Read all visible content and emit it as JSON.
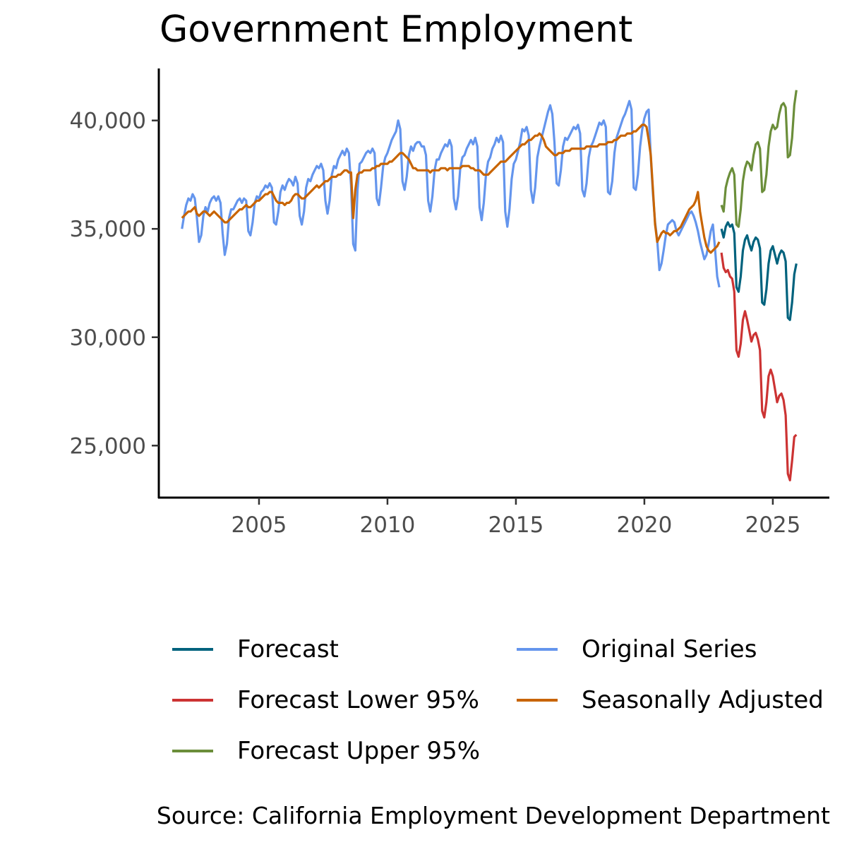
{
  "chart_data": {
    "type": "line",
    "title": "Government Employment",
    "caption": "Source: California Employment Development Department",
    "xlabel": "",
    "ylabel": "",
    "xlim": [
      2001.1,
      2027.2
    ],
    "ylim": [
      22600,
      42400
    ],
    "x_ticks": [
      2005,
      2010,
      2015,
      2020,
      2025
    ],
    "x_tick_labels": [
      "2005",
      "2010",
      "2015",
      "2020",
      "2025"
    ],
    "y_ticks": [
      25000,
      30000,
      35000,
      40000
    ],
    "y_tick_labels": [
      "25,000",
      "30,000",
      "35,000",
      "40,000"
    ],
    "grid": false,
    "legend_position": "bottom",
    "colors": {
      "Forecast": "#00627d",
      "Forecast Lower 95%": "#cc3333",
      "Forecast Upper 95%": "#6b8e3a",
      "Original Series": "#6495ed",
      "Seasonally Adjusted": "#c86400"
    },
    "legend": [
      {
        "name": "Forecast",
        "color": "#00627d"
      },
      {
        "name": "Forecast Lower 95%",
        "color": "#cc3333"
      },
      {
        "name": "Forecast Upper 95%",
        "color": "#6b8e3a"
      },
      {
        "name": "Original Series",
        "color": "#6495ed"
      },
      {
        "name": "Seasonally Adjusted",
        "color": "#c86400"
      }
    ],
    "series": [
      {
        "name": "Original Series",
        "start": "2002-01",
        "frequency": "monthly",
        "annual": [
          {
            "year": 2002,
            "values": [
              35000,
              35600,
              36100,
              36400,
              36300,
              36600,
              36400,
              35500,
              34400,
              34700,
              35600,
              36000
            ]
          },
          {
            "year": 2003,
            "values": [
              35800,
              36200,
              36400,
              36500,
              36300,
              36500,
              36200,
              34800,
              33800,
              34300,
              35500,
              35900
            ]
          },
          {
            "year": 2004,
            "values": [
              35900,
              36100,
              36300,
              36400,
              36200,
              36400,
              36300,
              34900,
              34700,
              35300,
              36200,
              36500
            ]
          },
          {
            "year": 2005,
            "values": [
              36400,
              36700,
              36800,
              37000,
              36900,
              37100,
              36900,
              35300,
              35200,
              35800,
              36700,
              37000
            ]
          },
          {
            "year": 2006,
            "values": [
              36800,
              37100,
              37300,
              37200,
              37000,
              37400,
              37100,
              35600,
              35200,
              35800,
              36900,
              37300
            ]
          },
          {
            "year": 2007,
            "values": [
              37200,
              37500,
              37700,
              37900,
              37800,
              38000,
              37700,
              36300,
              35700,
              36300,
              37500,
              37900
            ]
          },
          {
            "year": 2008,
            "values": [
              37800,
              38200,
              38400,
              38600,
              38400,
              38700,
              38500,
              37000,
              34300,
              34000,
              36800,
              38000
            ]
          },
          {
            "year": 2009,
            "values": [
              38100,
              38300,
              38500,
              38600,
              38500,
              38700,
              38500,
              36400,
              36100,
              36900,
              37900,
              38300
            ]
          },
          {
            "year": 2010,
            "values": [
              38500,
              38800,
              39100,
              39300,
              39500,
              40000,
              39600,
              37200,
              36800,
              37400,
              38400,
              38800
            ]
          },
          {
            "year": 2011,
            "values": [
              38600,
              38900,
              39000,
              39000,
              38800,
              38800,
              38400,
              36300,
              35800,
              36500,
              37700,
              38200
            ]
          },
          {
            "year": 2012,
            "values": [
              38200,
              38500,
              38700,
              38900,
              38800,
              39100,
              38800,
              36400,
              35900,
              36500,
              37800,
              38300
            ]
          },
          {
            "year": 2013,
            "values": [
              38400,
              38700,
              38900,
              39100,
              38900,
              39200,
              38800,
              36000,
              35400,
              36200,
              37500,
              38100
            ]
          },
          {
            "year": 2014,
            "values": [
              38300,
              38700,
              38900,
              39200,
              39000,
              39300,
              39000,
              35800,
              35100,
              35900,
              37300,
              38000
            ]
          },
          {
            "year": 2015,
            "values": [
              38200,
              38600,
              39000,
              39600,
              39500,
              39700,
              39300,
              36800,
              36200,
              36900,
              38300,
              38800
            ]
          },
          {
            "year": 2016,
            "values": [
              39200,
              39600,
              40000,
              40400,
              40700,
              40300,
              39000,
              37100,
              37000,
              37700,
              38800,
              39200
            ]
          },
          {
            "year": 2017,
            "values": [
              39100,
              39300,
              39500,
              39700,
              39600,
              39800,
              39400,
              36800,
              36500,
              37100,
              38300,
              38800
            ]
          },
          {
            "year": 2018,
            "values": [
              39000,
              39300,
              39600,
              39900,
              39800,
              40000,
              39700,
              36700,
              36600,
              37200,
              38500,
              39200
            ]
          },
          {
            "year": 2019,
            "values": [
              39500,
              39800,
              40100,
              40300,
              40600,
              40900,
              40500,
              36900,
              36800,
              37500,
              38800,
              39600
            ]
          },
          {
            "year": 2020,
            "values": [
              40100,
              40400,
              40500,
              38300,
              36600,
              35300,
              34500,
              33100,
              33400,
              34000,
              34700,
              35200
            ]
          },
          {
            "year": 2021,
            "values": [
              35300,
              35400,
              35300,
              34900,
              34700,
              34900,
              35100,
              35300,
              35500,
              35700,
              35800,
              35600
            ]
          },
          {
            "year": 2022,
            "values": [
              35300,
              34900,
              34400,
              34000,
              33600,
              33800,
              34300,
              34900,
              35200,
              34100,
              32800,
              32300
            ]
          }
        ]
      },
      {
        "name": "Seasonally Adjusted",
        "start": "2002-01",
        "frequency": "monthly",
        "annual": [
          {
            "year": 2002,
            "values": [
              35500,
              35600,
              35700,
              35800,
              35800,
              35900,
              36000,
              35700,
              35600,
              35700,
              35800,
              35800
            ]
          },
          {
            "year": 2003,
            "values": [
              35700,
              35600,
              35700,
              35800,
              35700,
              35600,
              35500,
              35400,
              35300,
              35300,
              35400,
              35500
            ]
          },
          {
            "year": 2004,
            "values": [
              35600,
              35700,
              35800,
              35900,
              35900,
              36000,
              36100,
              36000,
              36000,
              36100,
              36200,
              36300
            ]
          },
          {
            "year": 2005,
            "values": [
              36300,
              36400,
              36500,
              36600,
              36600,
              36700,
              36700,
              36500,
              36300,
              36200,
              36200,
              36200
            ]
          },
          {
            "year": 2006,
            "values": [
              36100,
              36200,
              36200,
              36300,
              36500,
              36600,
              36600,
              36500,
              36400,
              36400,
              36500,
              36600
            ]
          },
          {
            "year": 2007,
            "values": [
              36700,
              36800,
              36900,
              37000,
              36900,
              37000,
              37100,
              37200,
              37200,
              37300,
              37400,
              37400
            ]
          },
          {
            "year": 2008,
            "values": [
              37400,
              37500,
              37500,
              37600,
              37700,
              37700,
              37600,
              37600,
              35500,
              36800,
              37500,
              37600
            ]
          },
          {
            "year": 2009,
            "values": [
              37600,
              37700,
              37700,
              37700,
              37700,
              37800,
              37800,
              37900,
              37900,
              38000,
              38000,
              38000
            ]
          },
          {
            "year": 2010,
            "values": [
              38000,
              38100,
              38100,
              38200,
              38300,
              38400,
              38500,
              38500,
              38400,
              38300,
              38200,
              38000
            ]
          },
          {
            "year": 2011,
            "values": [
              37800,
              37800,
              37700,
              37700,
              37700,
              37700,
              37700,
              37700,
              37600,
              37700,
              37700,
              37700
            ]
          },
          {
            "year": 2012,
            "values": [
              37700,
              37800,
              37800,
              37800,
              37700,
              37800,
              37800,
              37800,
              37800,
              37800,
              37800,
              37900
            ]
          },
          {
            "year": 2013,
            "values": [
              37900,
              37900,
              37900,
              37800,
              37800,
              37700,
              37700,
              37700,
              37600,
              37500,
              37500,
              37500
            ]
          },
          {
            "year": 2014,
            "values": [
              37600,
              37700,
              37800,
              37900,
              38000,
              38100,
              38100,
              38100,
              38200,
              38300,
              38400,
              38500
            ]
          },
          {
            "year": 2015,
            "values": [
              38600,
              38700,
              38800,
              38900,
              38900,
              39000,
              39100,
              39100,
              39200,
              39300,
              39300,
              39400
            ]
          },
          {
            "year": 2016,
            "values": [
              39300,
              39100,
              38800,
              38700,
              38600,
              38500,
              38400,
              38400,
              38500,
              38500,
              38500,
              38600
            ]
          },
          {
            "year": 2017,
            "values": [
              38600,
              38600,
              38700,
              38700,
              38700,
              38700,
              38700,
              38700,
              38700,
              38800,
              38800,
              38800
            ]
          },
          {
            "year": 2018,
            "values": [
              38800,
              38800,
              38800,
              38900,
              38900,
              38900,
              38900,
              39000,
              39000,
              39000,
              39100,
              39100
            ]
          },
          {
            "year": 2019,
            "values": [
              39200,
              39300,
              39300,
              39300,
              39400,
              39400,
              39400,
              39500,
              39500,
              39600,
              39700,
              39800
            ]
          },
          {
            "year": 2020,
            "values": [
              39800,
              39700,
              39100,
              38400,
              36800,
              35200,
              34400,
              34600,
              34800,
              34900,
              34800,
              34800
            ]
          },
          {
            "year": 2021,
            "values": [
              34700,
              34800,
              34900,
              34900,
              35000,
              35100,
              35300,
              35500,
              35700,
              35900,
              36000,
              36100
            ]
          },
          {
            "year": 2022,
            "values": [
              36300,
              36700,
              35800,
              35200,
              34600,
              34200,
              34000,
              33900,
              34000,
              34100,
              34200,
              34400
            ]
          }
        ]
      },
      {
        "name": "Forecast",
        "start": "2023-01",
        "frequency": "monthly",
        "annual": [
          {
            "year": 2023,
            "values": [
              35000,
              34600,
              35100,
              35300,
              35100,
              35200,
              34800,
              32300,
              32100,
              32800,
              34000,
              34500
            ]
          },
          {
            "year": 2024,
            "values": [
              34700,
              34300,
              34000,
              34400,
              34600,
              34500,
              34100,
              31600,
              31500,
              32200,
              33400,
              34000
            ]
          },
          {
            "year": 2025,
            "values": [
              34200,
              33800,
              33400,
              33800,
              34000,
              33900,
              33500,
              30900,
              30800,
              31600,
              32900,
              33400
            ]
          }
        ]
      },
      {
        "name": "Forecast Lower 95%",
        "start": "2023-01",
        "frequency": "monthly",
        "annual": [
          {
            "year": 2023,
            "values": [
              33900,
              33200,
              33000,
              33100,
              32800,
              32700,
              32100,
              29400,
              29100,
              29700,
              30800,
              31200
            ]
          },
          {
            "year": 2024,
            "values": [
              30800,
              30300,
              29800,
              30100,
              30200,
              29900,
              29400,
              26600,
              26300,
              27000,
              28200,
              28500
            ]
          },
          {
            "year": 2025,
            "values": [
              28200,
              27600,
              27000,
              27300,
              27400,
              27100,
              26400,
              23700,
              23400,
              24300,
              25400,
              25500
            ]
          }
        ]
      },
      {
        "name": "Forecast Upper 95%",
        "start": "2023-01",
        "frequency": "monthly",
        "annual": [
          {
            "year": 2023,
            "values": [
              36100,
              35800,
              36900,
              37300,
              37600,
              37800,
              37500,
              35200,
              35100,
              35900,
              37200,
              37800
            ]
          },
          {
            "year": 2024,
            "values": [
              38100,
              38000,
              37700,
              38400,
              38900,
              39000,
              38700,
              36700,
              36800,
              37500,
              38800,
              39500
            ]
          },
          {
            "year": 2025,
            "values": [
              39800,
              39600,
              39700,
              40300,
              40700,
              40800,
              40600,
              38300,
              38400,
              39200,
              40700,
              41400
            ]
          }
        ]
      }
    ]
  }
}
